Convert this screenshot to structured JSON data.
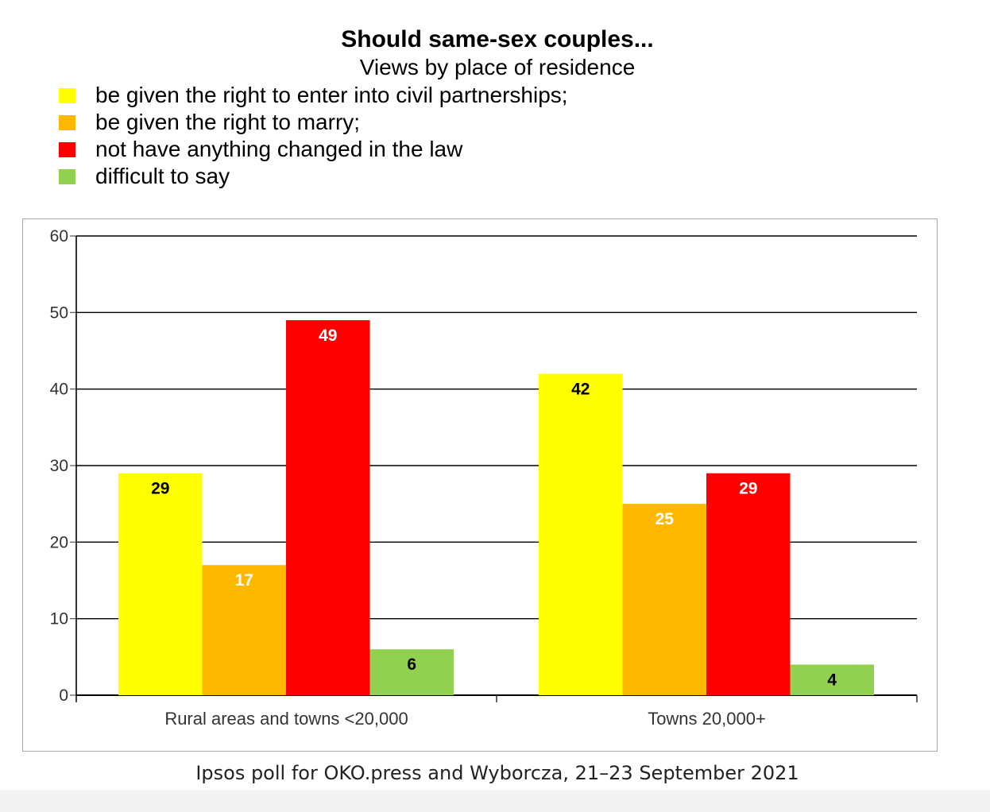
{
  "chart_data": {
    "type": "bar",
    "title": "Should same-sex couples...",
    "subtitle": "Views by place of residence",
    "categories": [
      "Rural areas and towns <20,000",
      "Towns 20,000+"
    ],
    "series": [
      {
        "name": "be given the right to enter into civil partnerships;",
        "color": "#ffff00",
        "label_color": "#000000",
        "values": [
          29,
          42
        ]
      },
      {
        "name": "be given the right to marry;",
        "color": "#ffb800",
        "label_color": "#ffffff",
        "values": [
          17,
          25
        ]
      },
      {
        "name": "not have anything changed in the law",
        "color": "#ff0000",
        "label_color": "#ffffff",
        "values": [
          49,
          29
        ]
      },
      {
        "name": "difficult to say",
        "color": "#92d050",
        "label_color": "#000000",
        "values": [
          6,
          4
        ]
      }
    ],
    "ylim": [
      0,
      60
    ],
    "yticks": [
      0,
      10,
      20,
      30,
      40,
      50,
      60
    ],
    "grid": true,
    "legend_position": "top-left",
    "data_labels": true
  },
  "source": "Ipsos poll for OKO.press and Wyborcza, 21–23 September 2021"
}
